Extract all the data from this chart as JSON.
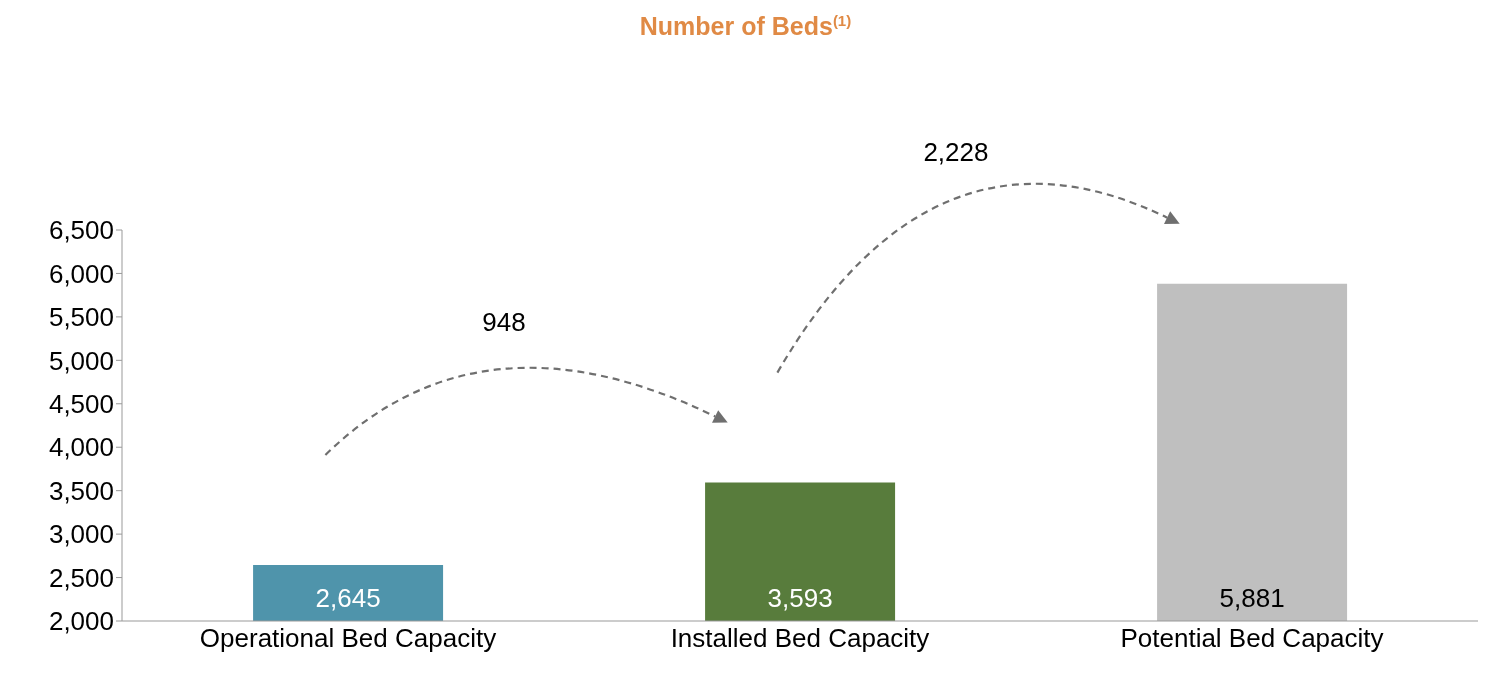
{
  "chart_data": {
    "type": "bar",
    "title": "Number of Beds$^{(1)}$",
    "categories": [
      "Operational Bed Capacity",
      "Installed Bed Capacity",
      "Potential Bed Capacity"
    ],
    "values": [
      2645,
      3593,
      5881
    ],
    "colors": [
      "#4f94ab",
      "#587c3c",
      "#bfbfbf"
    ],
    "value_labels": [
      "2,645",
      "3,593",
      "5,881"
    ],
    "ylim": [
      2000,
      6500
    ],
    "yticks": [
      {
        "value": 2000,
        "label": "2,000"
      },
      {
        "value": 2500,
        "label": "2,500"
      },
      {
        "value": 3000,
        "label": "3,000"
      },
      {
        "value": 3500,
        "label": "3,500"
      },
      {
        "value": 4000,
        "label": "4,000"
      },
      {
        "value": 4500,
        "label": "4,500"
      },
      {
        "value": 5000,
        "label": "5,000"
      },
      {
        "value": 5500,
        "label": "5,500"
      },
      {
        "value": 6000,
        "label": "6,000"
      },
      {
        "value": 6500,
        "label": "6,500"
      }
    ],
    "grid": false,
    "annotations": [
      "948",
      "2,228"
    ]
  }
}
